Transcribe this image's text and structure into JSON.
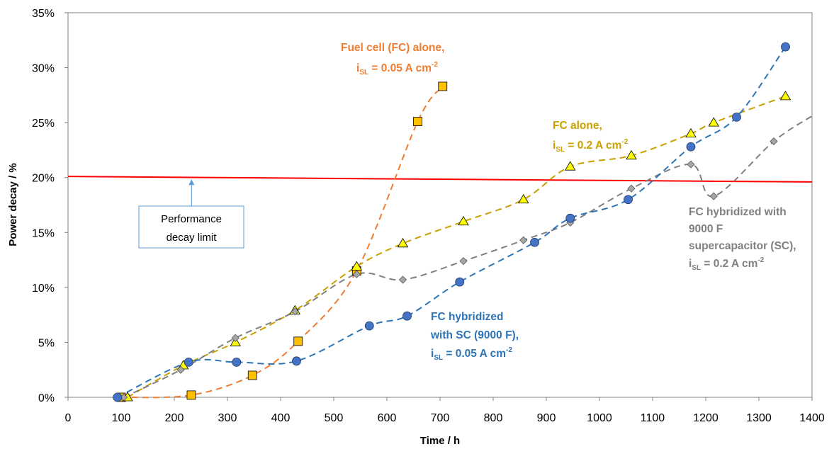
{
  "chart_data": {
    "type": "scatter",
    "title": "",
    "xlabel": "Time / h",
    "ylabel": "Power decay / %",
    "xlim": [
      0,
      1400
    ],
    "ylim": [
      0,
      35
    ],
    "x_ticks": [
      0,
      100,
      200,
      300,
      400,
      500,
      600,
      700,
      800,
      900,
      1000,
      1100,
      1200,
      1300,
      1400
    ],
    "x_tick_labels": [
      "0",
      "100",
      "200",
      "300",
      "400",
      "500",
      "600",
      "700",
      "800",
      "900",
      "1000",
      "1100",
      "1200",
      "1300",
      "1400"
    ],
    "y_ticks": [
      0,
      5,
      10,
      15,
      20,
      25,
      30,
      35
    ],
    "y_tick_labels": [
      "0%",
      "5%",
      "10%",
      "15%",
      "20%",
      "25%",
      "30%",
      "35%"
    ],
    "grid": false,
    "series": [
      {
        "key": "fc_alone_005",
        "marker": "square",
        "color": "#ED7D31",
        "marker_fill": "#FFC000",
        "label": {
          "line1": "Fuel cell (FC) alone,",
          "line2_prefix": "i",
          "line2_sub": "SL",
          "line2_mid": " = 0.05 A cm",
          "line2_sup": "-2"
        },
        "points": [
          [
            100,
            0
          ],
          [
            232,
            0.2
          ],
          [
            347,
            2.0
          ],
          [
            433,
            5.1
          ],
          [
            543,
            11.5
          ],
          [
            658,
            25.1
          ],
          [
            705,
            28.3
          ]
        ]
      },
      {
        "key": "fc_alone_02",
        "marker": "triangle",
        "color": "#C9A000",
        "marker_fill": "#FFFF00",
        "label": {
          "line1": "FC alone,",
          "line2_prefix": "i",
          "line2_sub": "SL",
          "line2_mid": " = 0.2 A cm",
          "line2_sup": "-2"
        },
        "points": [
          [
            112,
            0
          ],
          [
            217,
            2.9
          ],
          [
            315,
            5.0
          ],
          [
            427,
            7.9
          ],
          [
            543,
            11.9
          ],
          [
            630,
            14.0
          ],
          [
            744,
            16.0
          ],
          [
            857,
            18.0
          ],
          [
            945,
            21.0
          ],
          [
            1060,
            22.0
          ],
          [
            1172,
            24.0
          ],
          [
            1215,
            25.0
          ],
          [
            1350,
            27.4
          ]
        ]
      },
      {
        "key": "fc_hybrid_02",
        "marker": "diamond",
        "color": "#808080",
        "marker_fill": "#A6A6A6",
        "label": {
          "line1": "FC hybridized with",
          "line2": "9000 F",
          "line3": "supercapacitor (SC),",
          "line4_prefix": "i",
          "line4_sub": "SL",
          "line4_mid": " = 0.2 A cm",
          "line4_sup": "-2"
        },
        "points": [
          [
            105,
            0
          ],
          [
            212,
            2.5
          ],
          [
            315,
            5.4
          ],
          [
            427,
            7.8
          ],
          [
            543,
            11.2
          ],
          [
            630,
            10.7
          ],
          [
            744,
            12.4
          ],
          [
            857,
            14.3
          ],
          [
            945,
            15.9
          ],
          [
            1060,
            19.0
          ],
          [
            1172,
            21.2
          ],
          [
            1215,
            18.3
          ],
          [
            1328,
            23.3
          ]
        ],
        "line_extends_to": [
          1400,
          25.6
        ]
      },
      {
        "key": "fc_hybrid_005",
        "marker": "circle",
        "color": "#2E75B6",
        "marker_fill": "#4472C4",
        "label": {
          "line1": "FC hybridized",
          "line2": "with SC (9000 F),",
          "line3_prefix": "i",
          "line3_sub": "SL",
          "line3_mid": " = 0.05 A cm",
          "line3_sup": "-2"
        },
        "points": [
          [
            93,
            0
          ],
          [
            227,
            3.2
          ],
          [
            317,
            3.2
          ],
          [
            430,
            3.3
          ],
          [
            567,
            6.5
          ],
          [
            638,
            7.4
          ],
          [
            737,
            10.5
          ],
          [
            878,
            14.1
          ],
          [
            945,
            16.3
          ],
          [
            1054,
            18.0
          ],
          [
            1172,
            22.8
          ],
          [
            1258,
            25.5
          ],
          [
            1350,
            31.9
          ]
        ]
      }
    ],
    "limit_line": {
      "color": "#FF0000",
      "y_start": 20.1,
      "y_end": 19.6,
      "callout": {
        "line1": "Performance",
        "line2": "decay limit",
        "arrow_target": [
          250,
          19.9
        ]
      }
    }
  }
}
